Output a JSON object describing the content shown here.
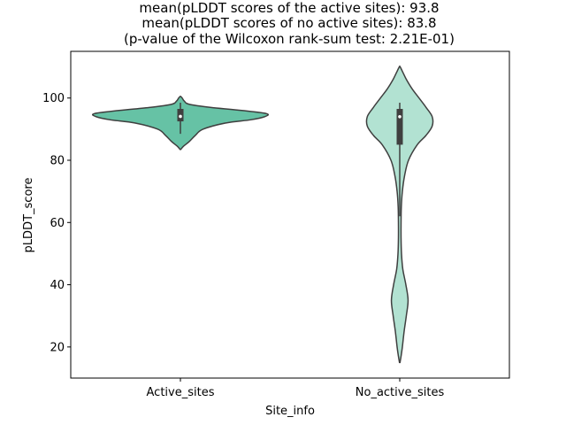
{
  "chart_data": {
    "type": "violin",
    "title_lines": [
      "mean(pLDDT scores of the active sites): 93.8",
      "mean(pLDDT scores of no active sites): 83.8",
      "(p-value of the Wilcoxon rank-sum test: 2.21E-01)"
    ],
    "xlabel": "Site_info",
    "ylabel": "pLDDT_score",
    "ylim": [
      10,
      115
    ],
    "yticks": [
      20,
      40,
      60,
      80,
      100
    ],
    "grid": false,
    "categories": [
      "Active_sites",
      "No_active_sites"
    ],
    "series": [
      {
        "color": "#66c2a5",
        "density": [
          [
            83.5,
            0.005
          ],
          [
            84.5,
            0.035
          ],
          [
            86,
            0.1
          ],
          [
            88,
            0.17
          ],
          [
            90,
            0.26
          ],
          [
            92,
            0.52
          ],
          [
            93,
            0.8
          ],
          [
            94,
            0.96
          ],
          [
            95,
            0.98
          ],
          [
            96,
            0.7
          ],
          [
            97,
            0.34
          ],
          [
            98,
            0.1
          ],
          [
            99,
            0.045
          ],
          [
            100,
            0.02
          ],
          [
            100.5,
            0.003
          ]
        ],
        "box": {
          "q1": 92.5,
          "median": 94.1,
          "q3": 96.5,
          "whisker_low": 88.5,
          "whisker_high": 98.5
        }
      },
      {
        "color": "#b2e2d2",
        "density": [
          [
            15,
            0.003
          ],
          [
            17,
            0.015
          ],
          [
            20,
            0.03
          ],
          [
            25,
            0.05
          ],
          [
            30,
            0.075
          ],
          [
            35,
            0.095
          ],
          [
            40,
            0.07
          ],
          [
            45,
            0.035
          ],
          [
            50,
            0.02
          ],
          [
            55,
            0.015
          ],
          [
            60,
            0.015
          ],
          [
            65,
            0.018
          ],
          [
            70,
            0.03
          ],
          [
            75,
            0.055
          ],
          [
            80,
            0.1
          ],
          [
            85,
            0.2
          ],
          [
            88,
            0.3
          ],
          [
            91,
            0.37
          ],
          [
            94,
            0.37
          ],
          [
            97,
            0.3
          ],
          [
            100,
            0.22
          ],
          [
            103,
            0.14
          ],
          [
            106,
            0.075
          ],
          [
            108,
            0.04
          ],
          [
            110,
            0.005
          ]
        ],
        "box": {
          "q1": 85,
          "median": 94,
          "q3": 96.5,
          "whisker_low": 62,
          "whisker_high": 98.5
        }
      }
    ]
  }
}
